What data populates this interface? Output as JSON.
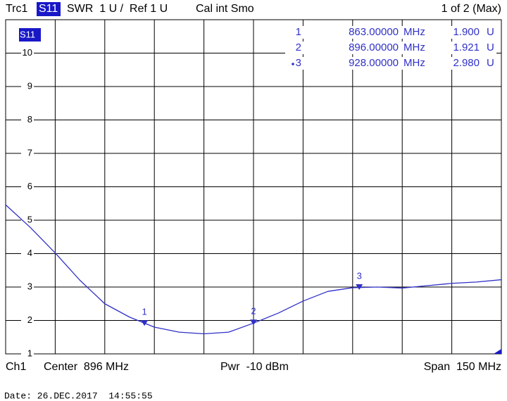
{
  "header": {
    "trace": "Trc1",
    "param": "S11",
    "format": "SWR  1 U /  Ref 1 U",
    "cal": "Cal int Smo",
    "page": "1 of 2 (Max)"
  },
  "chart_data": {
    "type": "line",
    "trace_label": "S11",
    "x": [
      821,
      828.5,
      836,
      843.5,
      851,
      858.5,
      866,
      873.5,
      881,
      888.5,
      896,
      903.5,
      911,
      918.5,
      926,
      933.5,
      941,
      948.5,
      956,
      963.5,
      971
    ],
    "series": [
      {
        "name": "S11",
        "color": "#3030c8",
        "values": [
          5.46,
          4.78,
          4.02,
          3.2,
          2.5,
          2.1,
          1.8,
          1.65,
          1.6,
          1.65,
          1.92,
          2.22,
          2.58,
          2.87,
          2.98,
          3.0,
          2.97,
          3.04,
          3.11,
          3.15,
          3.22
        ]
      }
    ],
    "xlim": [
      821,
      971
    ],
    "ylim": [
      1,
      11
    ],
    "yticks": [
      1,
      2,
      3,
      4,
      5,
      6,
      7,
      8,
      9,
      10
    ],
    "grid": true,
    "markers": [
      {
        "label": "1",
        "x": 863,
        "x_label": "863.00000",
        "x_unit": "MHz",
        "value": 1.9,
        "value_label": "1.900",
        "value_unit": "U"
      },
      {
        "label": "2",
        "x": 896,
        "x_label": "896.00000",
        "x_unit": "MHz",
        "value": 1.921,
        "value_label": "1.921",
        "value_unit": "U"
      },
      {
        "label": "3",
        "x": 928,
        "x_label": "928.00000",
        "x_unit": "MHz",
        "value": 2.98,
        "value_label": "2.980",
        "value_unit": "U",
        "active": true
      }
    ]
  },
  "footer": {
    "channel": "Ch1",
    "center": "Center  896 MHz",
    "power": "Pwr  -10 dBm",
    "span": "Span  150 MHz"
  },
  "date": "Date: 26.DEC.2017  14:55:55"
}
